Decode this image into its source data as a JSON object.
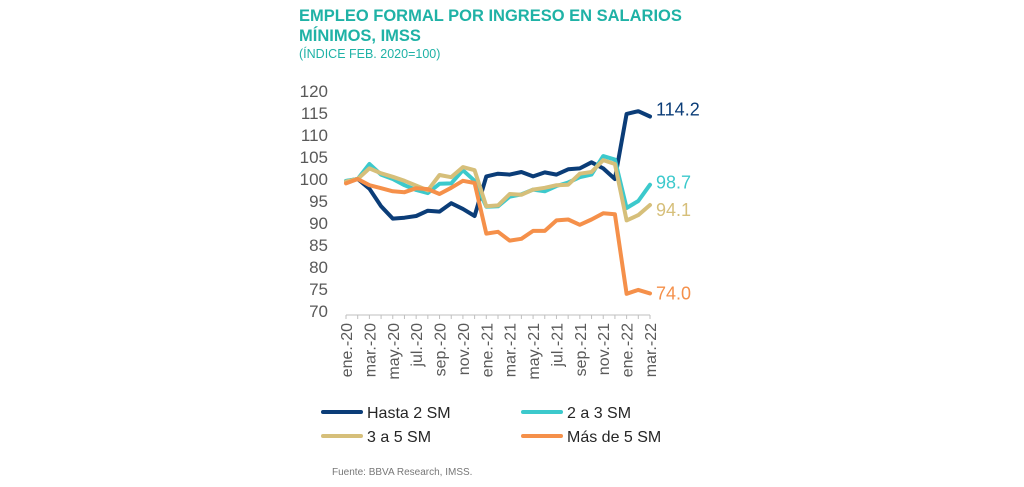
{
  "title_line1": "EMPLEO FORMAL POR INGRESO EN SALARIOS",
  "title_line2": "MÍNIMOS, IMSS",
  "subtitle": "(ÍNDICE FEB. 2020=100)",
  "source": "Fuente: BBVA Research, IMSS.",
  "chart_data": {
    "type": "line",
    "ylim": [
      70,
      120
    ],
    "yticks": [
      "120",
      "115",
      "110",
      "105",
      "100",
      "95",
      "90",
      "85",
      "80",
      "75",
      "70"
    ],
    "categories": [
      "ene.-20",
      "feb.-20",
      "mar.-20",
      "abr.-20",
      "may.-20",
      "jun.-20",
      "jul.-20",
      "ago.-20",
      "sep.-20",
      "oct.-20",
      "nov.-20",
      "dic.-20",
      "ene.-21",
      "feb.-21",
      "mar.-21",
      "abr.-21",
      "may.-21",
      "jun.-21",
      "jul.-21",
      "ago.-21",
      "sep.-21",
      "oct.-21",
      "nov.-21",
      "dic.-21",
      "ene.-22",
      "feb.-22",
      "mar.-22"
    ],
    "xtick_labels": [
      "ene.-20",
      "",
      "mar.-20",
      "",
      "may.-20",
      "",
      "jul.-20",
      "",
      "sep.-20",
      "",
      "nov.-20",
      "",
      "ene.-21",
      "",
      "mar.-21",
      "",
      "may.-21",
      "",
      "jul.-21",
      "",
      "sep.-21",
      "",
      "nov.-21",
      "",
      "ene.-22",
      "",
      "mar.-22"
    ],
    "series": [
      {
        "name": "Hasta 2 SM",
        "color": "#0b3d78",
        "values": [
          99.5,
          100,
          97.8,
          93.8,
          91.0,
          91.2,
          91.6,
          92.8,
          92.6,
          94.5,
          93.2,
          91.6,
          100.6,
          101.2,
          101.0,
          101.6,
          100.6,
          101.5,
          101.0,
          102.2,
          102.4,
          103.8,
          102.4,
          100.0,
          114.8,
          115.4,
          114.2
        ],
        "end_label": "114.2"
      },
      {
        "name": "2 a 3 SM",
        "color": "#3cc9cc",
        "values": [
          99.6,
          100,
          103.4,
          101.0,
          100.0,
          98.6,
          97.5,
          96.8,
          98.9,
          99.0,
          102.0,
          99.6,
          93.7,
          93.8,
          96.0,
          96.5,
          97.6,
          97.2,
          98.4,
          99.2,
          100.4,
          101.0,
          105.2,
          104.4,
          93.4,
          95.0,
          98.7
        ],
        "end_label": "98.7"
      },
      {
        "name": "3 a 5 SM",
        "color": "#d6bf7a",
        "values": [
          99.4,
          100,
          102.4,
          101.3,
          100.5,
          99.6,
          98.5,
          97.4,
          100.9,
          100.4,
          102.7,
          102.0,
          93.8,
          94.0,
          96.6,
          96.4,
          97.6,
          98.0,
          98.6,
          98.7,
          101.2,
          101.6,
          104.3,
          103.4,
          90.6,
          91.8,
          94.1
        ],
        "end_label": "94.1"
      },
      {
        "name": "Más de 5 SM",
        "color": "#f5904a",
        "values": [
          99.0,
          100,
          98.6,
          97.9,
          97.2,
          97.0,
          97.9,
          97.7,
          96.6,
          98.0,
          99.6,
          99.1,
          87.6,
          88.0,
          86.0,
          86.4,
          88.2,
          88.2,
          90.6,
          90.8,
          89.6,
          90.8,
          92.2,
          92.0,
          73.9,
          74.8,
          74.0
        ],
        "end_label": "74.0"
      }
    ],
    "legend_position": "bottom"
  }
}
